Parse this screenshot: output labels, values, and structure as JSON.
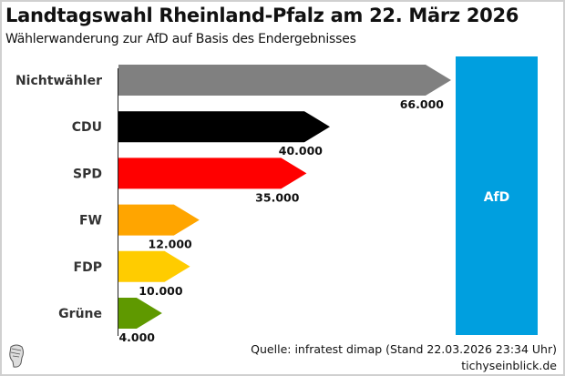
{
  "header": {
    "title": "Landtagswahl Rheinland-Pfalz am 22. März 2026",
    "subtitle": "Wählerwanderung zur AfD auf Basis des Endergebnisses"
  },
  "chart_data": {
    "type": "bar",
    "orientation": "horizontal",
    "title": "Landtagswahl Rheinland-Pfalz am 22. März 2026",
    "subtitle": "Wählerwanderung zur AfD auf Basis des Endergebnisses",
    "target": "AfD",
    "categories": [
      "Nichtwähler",
      "CDU",
      "SPD",
      "FW",
      "FDP",
      "Grüne"
    ],
    "values": [
      66000,
      40000,
      35000,
      12000,
      10000,
      4000
    ],
    "value_labels": [
      "66.000",
      "40.000",
      "35.000",
      "12.000",
      "10.000",
      "4.000"
    ],
    "colors": [
      "#808080",
      "#000000",
      "#ff0000",
      "#ffa500",
      "#ffcc00",
      "#5f9900"
    ],
    "target_color": "#009fdf"
  },
  "footer": {
    "source": "Quelle: infratest dimap (Stand 22.03.2026 23:34 Uhr)",
    "site": "tichyseinblick.de"
  }
}
